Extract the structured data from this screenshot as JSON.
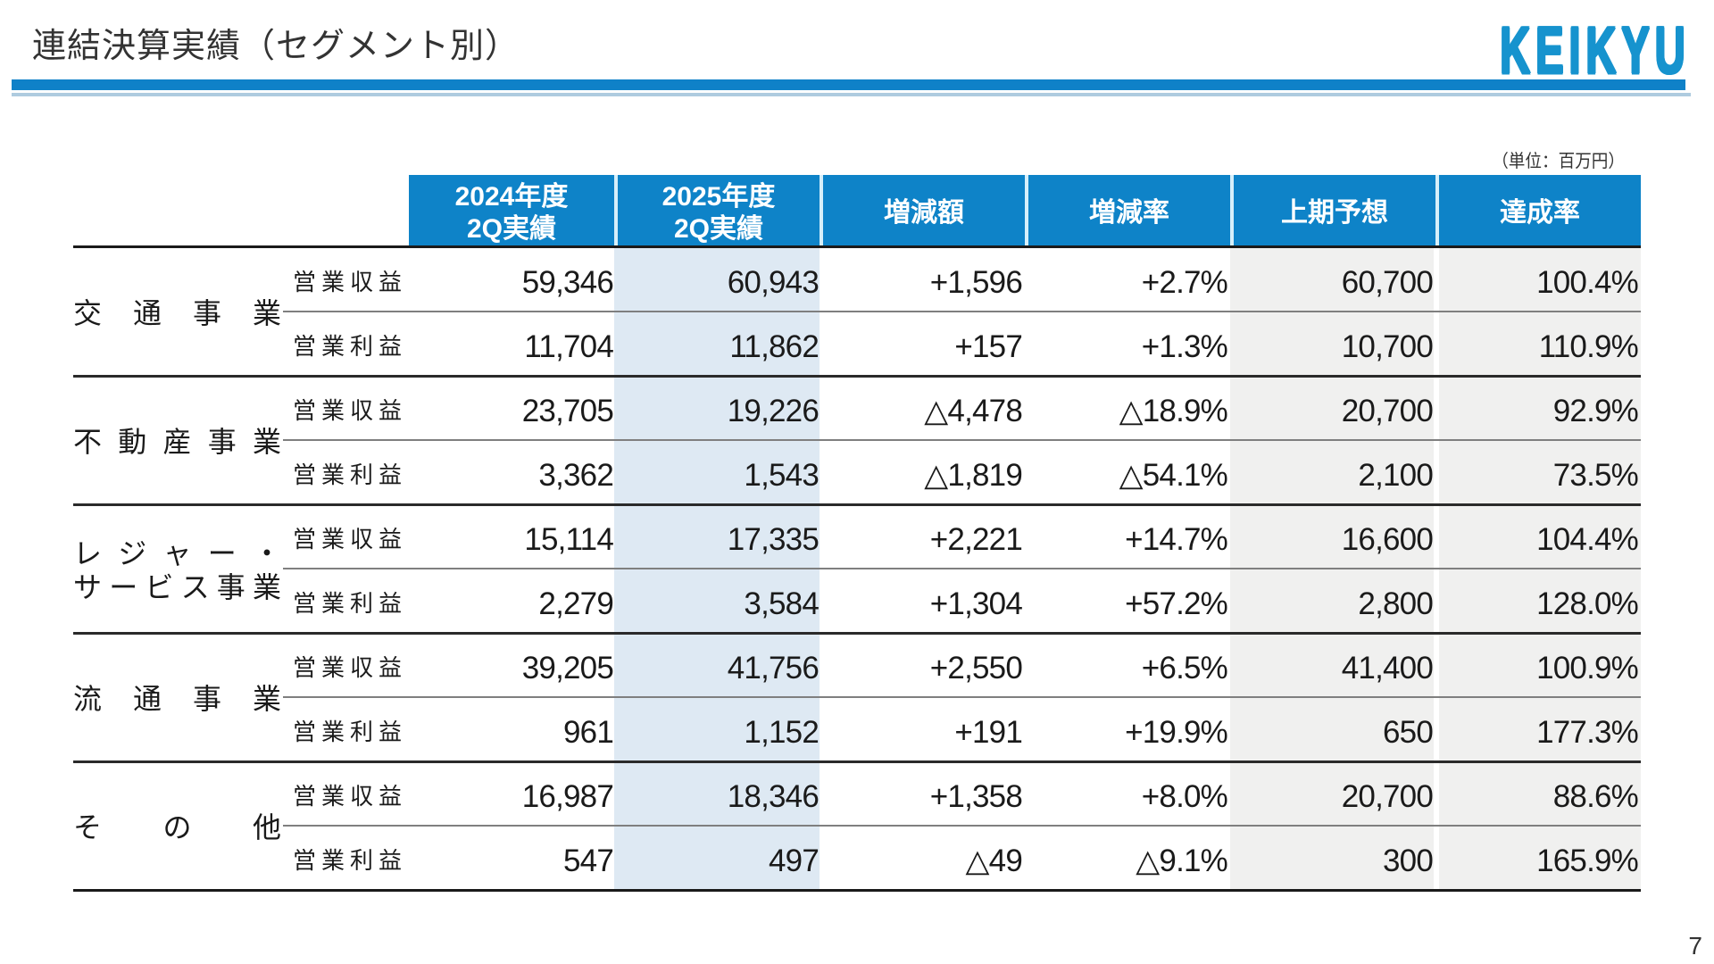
{
  "title": "連結決算実績（セグメント別）",
  "logo": "KEIKYU",
  "unit_note": "（単位：百万円）",
  "page_number": "7",
  "colors": {
    "header_blue": "#0E83C8",
    "rule_blue": "#0F81C8",
    "rule_light": "#AECBDF",
    "logo_blue": "#1693CE",
    "highlight_column_blue": "#DEE9F3",
    "forecast_column_gray": "#F0F0EF"
  },
  "table": {
    "col_headers": [
      {
        "lines": [
          "2024年度",
          "2Q実績"
        ]
      },
      {
        "lines": [
          "2025年度",
          "2Q実績"
        ]
      },
      {
        "lines": [
          "増減額"
        ]
      },
      {
        "lines": [
          "増減率"
        ]
      },
      {
        "lines": [
          "上期予想"
        ]
      },
      {
        "lines": [
          "達成率"
        ]
      }
    ],
    "segments": [
      {
        "name_lines": [
          "交通事業"
        ],
        "rows": [
          {
            "label": "営業収益",
            "values": [
              "59,346",
              "60,943",
              "+1,596",
              "+2.7%",
              "60,700",
              "100.4%"
            ]
          },
          {
            "label": "営業利益",
            "values": [
              "11,704",
              "11,862",
              "+157",
              "+1.3%",
              "10,700",
              "110.9%"
            ]
          }
        ]
      },
      {
        "name_lines": [
          "不動産事業"
        ],
        "rows": [
          {
            "label": "営業収益",
            "values": [
              "23,705",
              "19,226",
              "△4,478",
              "△18.9%",
              "20,700",
              "92.9%"
            ]
          },
          {
            "label": "営業利益",
            "values": [
              "3,362",
              "1,543",
              "△1,819",
              "△54.1%",
              "2,100",
              "73.5%"
            ]
          }
        ]
      },
      {
        "name_lines": [
          "レジャー・",
          "サービス事業"
        ],
        "rows": [
          {
            "label": "営業収益",
            "values": [
              "15,114",
              "17,335",
              "+2,221",
              "+14.7%",
              "16,600",
              "104.4%"
            ]
          },
          {
            "label": "営業利益",
            "values": [
              "2,279",
              "3,584",
              "+1,304",
              "+57.2%",
              "2,800",
              "128.0%"
            ]
          }
        ]
      },
      {
        "name_lines": [
          "流通事業"
        ],
        "rows": [
          {
            "label": "営業収益",
            "values": [
              "39,205",
              "41,756",
              "+2,550",
              "+6.5%",
              "41,400",
              "100.9%"
            ]
          },
          {
            "label": "営業利益",
            "values": [
              "961",
              "1,152",
              "+191",
              "+19.9%",
              "650",
              "177.3%"
            ]
          }
        ]
      },
      {
        "name_lines": [
          "その他"
        ],
        "rows": [
          {
            "label": "営業収益",
            "values": [
              "16,987",
              "18,346",
              "+1,358",
              "+8.0%",
              "20,700",
              "88.6%"
            ]
          },
          {
            "label": "営業利益",
            "values": [
              "547",
              "497",
              "△49",
              "△9.1%",
              "300",
              "165.9%"
            ]
          }
        ]
      }
    ]
  }
}
